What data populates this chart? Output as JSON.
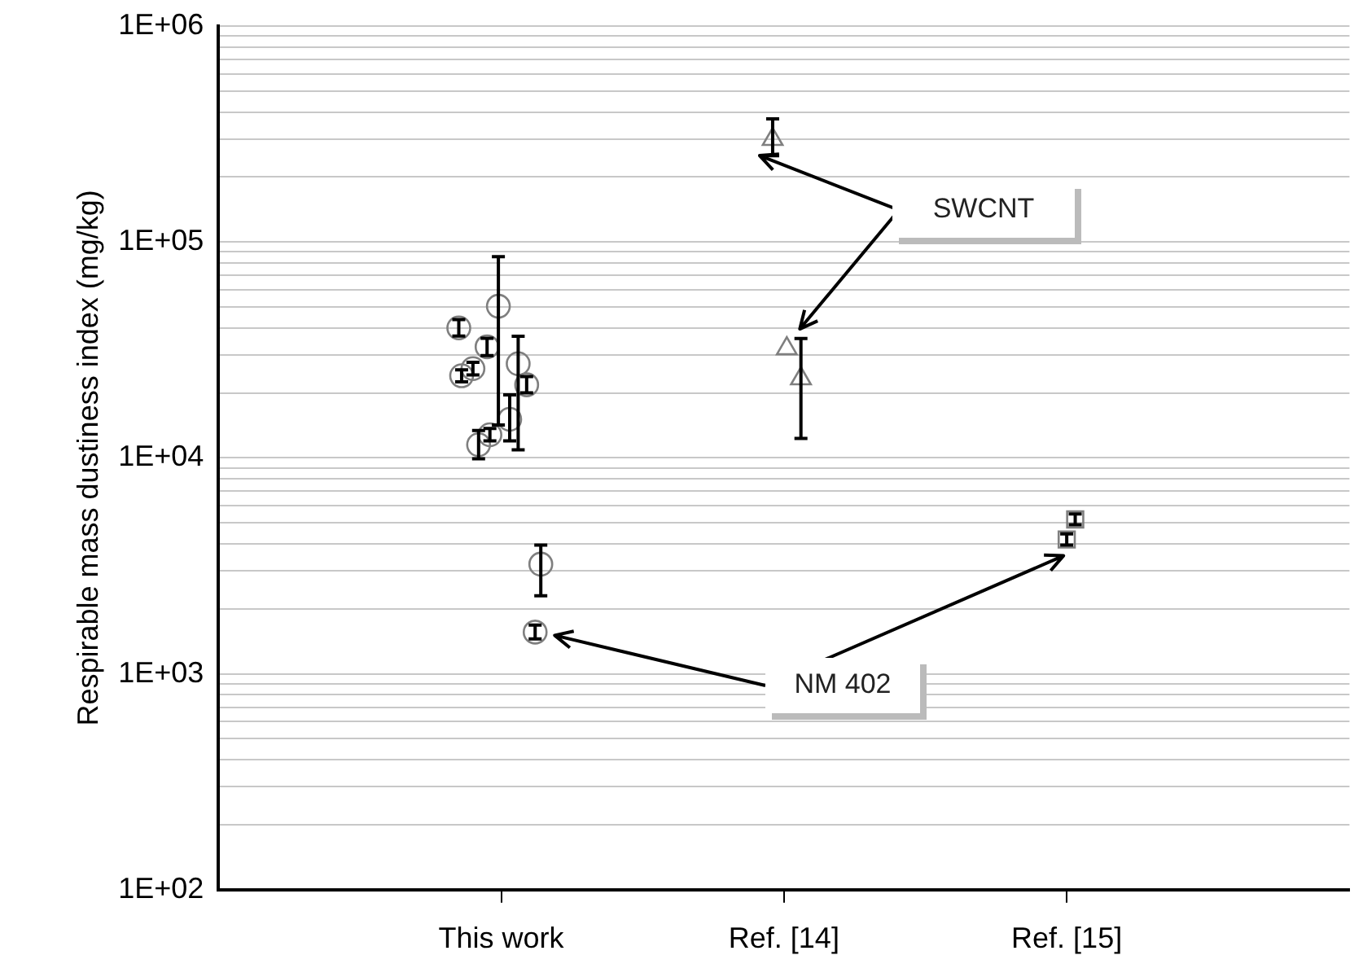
{
  "chart_data": {
    "type": "scatter",
    "ylabel": "Respirable mass dustiness index (mg/kg)",
    "log": "y",
    "grid": "y",
    "legend": false,
    "categories": [
      "This work",
      "Ref. [14]",
      "Ref. [15]"
    ],
    "ylim": [
      100,
      1000000
    ],
    "yticks": [
      {
        "value": 100,
        "label": "1E+02"
      },
      {
        "value": 200,
        "label": null
      },
      {
        "value": 300,
        "label": null
      },
      {
        "value": 400,
        "label": null
      },
      {
        "value": 500,
        "label": null
      },
      {
        "value": 600,
        "label": null
      },
      {
        "value": 700,
        "label": null
      },
      {
        "value": 800,
        "label": null
      },
      {
        "value": 900,
        "label": null
      },
      {
        "value": 1000,
        "label": "1E+03"
      },
      {
        "value": 2000,
        "label": null
      },
      {
        "value": 3000,
        "label": null
      },
      {
        "value": 4000,
        "label": null
      },
      {
        "value": 5000,
        "label": null
      },
      {
        "value": 6000,
        "label": null
      },
      {
        "value": 7000,
        "label": null
      },
      {
        "value": 8000,
        "label": null
      },
      {
        "value": 9000,
        "label": null
      },
      {
        "value": 10000,
        "label": "1E+04"
      },
      {
        "value": 20000,
        "label": null
      },
      {
        "value": 30000,
        "label": null
      },
      {
        "value": 40000,
        "label": null
      },
      {
        "value": 50000,
        "label": null
      },
      {
        "value": 60000,
        "label": null
      },
      {
        "value": 70000,
        "label": null
      },
      {
        "value": 80000,
        "label": null
      },
      {
        "value": 90000,
        "label": null
      },
      {
        "value": 100000,
        "label": "1E+05"
      },
      {
        "value": 200000,
        "label": null
      },
      {
        "value": 300000,
        "label": null
      },
      {
        "value": 400000,
        "label": null
      },
      {
        "value": 500000,
        "label": null
      },
      {
        "value": 600000,
        "label": null
      },
      {
        "value": 700000,
        "label": null
      },
      {
        "value": 800000,
        "label": null
      },
      {
        "value": 900000,
        "label": null
      },
      {
        "value": 1000000,
        "label": "1E+06"
      }
    ],
    "series": [
      {
        "marker": "circle",
        "color": "#7f7f7f",
        "x": [
          "This work",
          "This work",
          "This work",
          "This work",
          "This work",
          "This work",
          "This work",
          "This work",
          "This work",
          "This work",
          "This work",
          "This work"
        ],
        "values": [
          40000,
          24000,
          25900,
          32700,
          50400,
          27300,
          21800,
          15100,
          12800,
          11500,
          3220,
          1560
        ],
        "errors": [
          [
            36700,
            43700
          ],
          [
            22500,
            25600
          ],
          [
            24200,
            27700
          ],
          [
            29800,
            35800
          ],
          [
            14200,
            85500
          ],
          [
            10900,
            36600
          ],
          [
            20000,
            23800
          ],
          [
            12000,
            19600
          ],
          [
            12000,
            13700
          ],
          [
            9900,
            13400
          ],
          [
            2300,
            3950
          ],
          [
            1450,
            1680
          ]
        ]
      },
      {
        "marker": "triangle",
        "color": "#7f7f7f",
        "x": [
          "Ref. [14]",
          "Ref. [14]",
          "Ref. [14]"
        ],
        "values": [
          299000,
          32100,
          23300
        ],
        "errors": [
          [
            251000,
            372000
          ],
          null,
          [
            12300,
            35700
          ]
        ]
      },
      {
        "marker": "square",
        "color": "#7f7f7f",
        "x": [
          "Ref. [15]",
          "Ref. [15]"
        ],
        "values": [
          5190,
          4190
        ],
        "errors": [
          [
            4900,
            5500
          ],
          [
            3950,
            4450
          ]
        ]
      }
    ],
    "annotations": [
      "SWCNT",
      "NM 402"
    ]
  }
}
